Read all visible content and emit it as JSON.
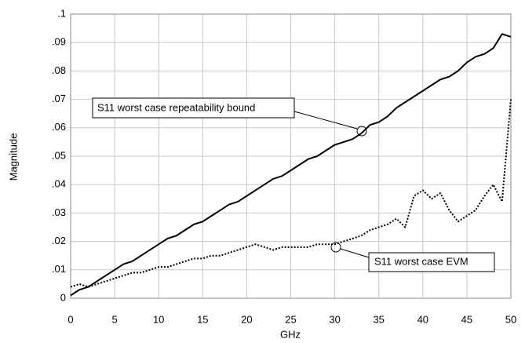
{
  "chart_data": {
    "type": "line",
    "xlabel": "GHz",
    "ylabel": "Magnitude",
    "x": [
      0,
      1,
      2,
      3,
      4,
      5,
      6,
      7,
      8,
      9,
      10,
      11,
      12,
      13,
      14,
      15,
      16,
      17,
      18,
      19,
      20,
      21,
      22,
      23,
      24,
      25,
      26,
      27,
      28,
      29,
      30,
      31,
      32,
      33,
      34,
      35,
      36,
      37,
      38,
      39,
      40,
      41,
      42,
      43,
      44,
      45,
      46,
      47,
      48,
      49,
      50
    ],
    "series": [
      {
        "name": "S11 worst case repeatability bound",
        "color": "#000000",
        "style": "solid",
        "values": [
          0.001,
          0.003,
          0.004,
          0.006,
          0.008,
          0.01,
          0.012,
          0.013,
          0.015,
          0.017,
          0.019,
          0.021,
          0.022,
          0.024,
          0.026,
          0.027,
          0.029,
          0.031,
          0.033,
          0.034,
          0.036,
          0.038,
          0.04,
          0.042,
          0.043,
          0.045,
          0.047,
          0.049,
          0.05,
          0.052,
          0.054,
          0.055,
          0.056,
          0.058,
          0.061,
          0.062,
          0.064,
          0.067,
          0.069,
          0.071,
          0.073,
          0.075,
          0.077,
          0.078,
          0.08,
          0.083,
          0.085,
          0.086,
          0.088,
          0.093,
          0.092
        ]
      },
      {
        "name": "S11 worst case EVM",
        "color": "#000000",
        "style": "dotted",
        "values": [
          0.004,
          0.005,
          0.004,
          0.005,
          0.006,
          0.007,
          0.008,
          0.009,
          0.009,
          0.01,
          0.011,
          0.011,
          0.012,
          0.013,
          0.014,
          0.014,
          0.015,
          0.015,
          0.016,
          0.017,
          0.018,
          0.019,
          0.018,
          0.017,
          0.018,
          0.018,
          0.018,
          0.018,
          0.019,
          0.019,
          0.019,
          0.02,
          0.021,
          0.022,
          0.024,
          0.025,
          0.026,
          0.028,
          0.025,
          0.036,
          0.038,
          0.035,
          0.037,
          0.031,
          0.027,
          0.029,
          0.031,
          0.036,
          0.04,
          0.034,
          0.07
        ]
      }
    ],
    "xlim": [
      0,
      50
    ],
    "xticks": [
      0,
      5,
      10,
      15,
      20,
      25,
      30,
      35,
      40,
      45,
      50
    ],
    "ylim": [
      0,
      0.1
    ],
    "yticks": [
      0,
      {
        "value": 0.01,
        "label": ".01"
      },
      {
        "value": 0.02,
        "label": ".02"
      },
      {
        "value": 0.03,
        "label": ".03"
      },
      {
        "value": 0.04,
        "label": ".04"
      },
      {
        "value": 0.05,
        "label": ".05"
      },
      {
        "value": 0.06,
        "label": ".06"
      },
      {
        "value": 0.07,
        "label": ".07"
      },
      {
        "value": 0.08,
        "label": ".08"
      },
      {
        "value": 0.09,
        "label": ".09"
      },
      {
        "value": 0.1,
        "label": ".1"
      }
    ],
    "grid": true
  }
}
